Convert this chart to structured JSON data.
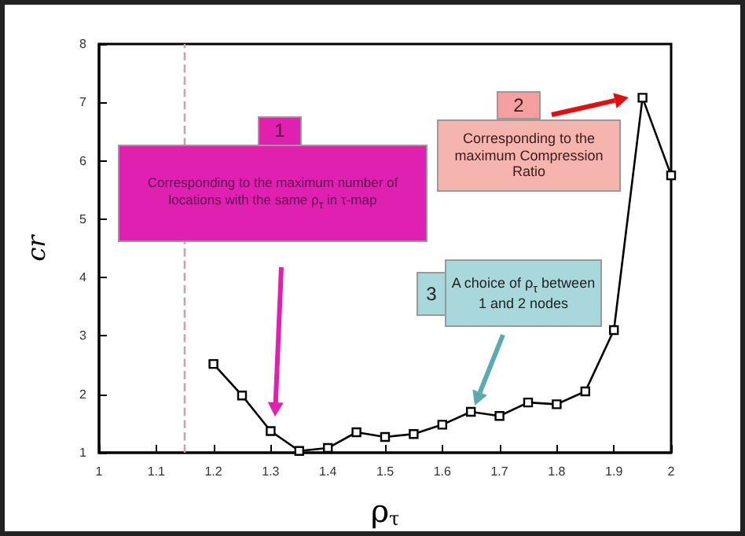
{
  "chart_data": {
    "type": "line",
    "xlabel": "ρ$_{τ}$",
    "ylabel": "cr",
    "x": [
      1.2,
      1.25,
      1.3,
      1.35,
      1.4,
      1.45,
      1.5,
      1.55,
      1.6,
      1.65,
      1.7,
      1.75,
      1.8,
      1.85,
      1.9,
      1.95,
      2.0
    ],
    "series": [
      {
        "color": "#000000",
        "values": [
          2.52,
          1.98,
          1.37,
          1.03,
          1.08,
          1.35,
          1.27,
          1.32,
          1.48,
          1.7,
          1.63,
          1.86,
          1.83,
          2.05,
          3.1,
          7.08,
          5.75
        ]
      }
    ],
    "xlim": [
      1,
      2
    ],
    "xticks": [
      1,
      1.1,
      1.2,
      1.3,
      1.4,
      1.5,
      1.6,
      1.7,
      1.8,
      1.9,
      2
    ],
    "ylim": [
      1,
      8
    ],
    "yticks": [
      1,
      2,
      3,
      4,
      5,
      6,
      7,
      8
    ],
    "grid": false,
    "marker": "square",
    "line_style": "solid",
    "ref_lines": [
      {
        "axis": "x",
        "value": 1.15,
        "color": "#c9a3aa",
        "line_style": "dashed"
      }
    ],
    "annotations": [
      "1",
      "Corresponding to the maximum number of locations with the same ρ$_{τ}$ in τ-map",
      "2",
      "Corresponding to the maximum Compression Ratio",
      "3",
      "A choice of ρ$_{τ}$ between 1 and 2 nodes"
    ]
  }
}
